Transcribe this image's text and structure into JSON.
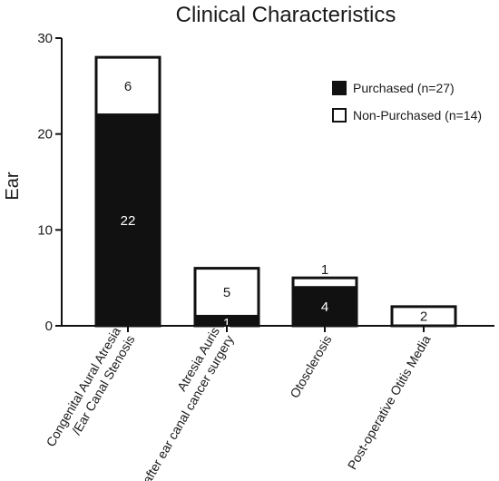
{
  "chart_data": {
    "type": "bar",
    "stacked": true,
    "title": "Clinical Characteristics",
    "ylabel": "Ear",
    "xlabel": "",
    "ylim": [
      0,
      30
    ],
    "yticks": [
      0,
      10,
      20,
      30
    ],
    "categories": [
      [
        "Congenital Aural Atresia",
        "/Ear Canal Stenosis"
      ],
      [
        "Atresia Auris",
        "after ear canal cancer surgery"
      ],
      [
        "Otosclerosis"
      ],
      [
        "Post-operative Otitis Media"
      ]
    ],
    "series": [
      {
        "name": "Purchased (n=27)",
        "values": [
          22,
          1,
          4,
          0
        ],
        "color": "#111111",
        "label_color": "#ffffff"
      },
      {
        "name": "Non-Purchased (n=14)",
        "values": [
          6,
          5,
          1,
          2
        ],
        "color": "#ffffff",
        "label_color": "#1a1a1a"
      }
    ],
    "legend_position": "top-right",
    "grid": false
  }
}
